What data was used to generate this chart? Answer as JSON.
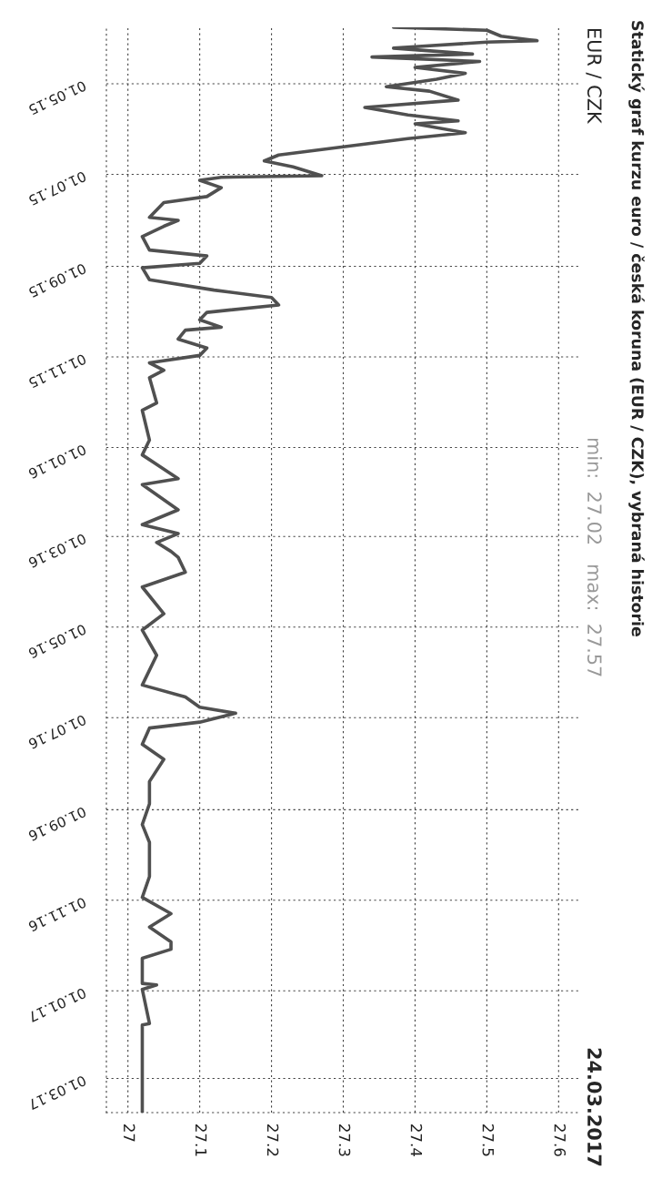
{
  "chart_data": {
    "type": "line",
    "title": "Statický graf kurzu euro / česká koruna (EUR / CZK), vybraná historie",
    "subtitle": "EUR / CZK",
    "annotations": [
      "min:  27.02   max:  27.57",
      "24.03.2017"
    ],
    "x": [
      "2015-03-24",
      "2015-03-26",
      "2015-03-30",
      "2015-04-02",
      "2015-04-03",
      "2015-04-06",
      "2015-04-07",
      "2015-04-11",
      "2015-04-13",
      "2015-04-16",
      "2015-04-20",
      "2015-04-24",
      "2015-04-28",
      "2015-05-03",
      "2015-05-06",
      "2015-05-12",
      "2015-05-17",
      "2015-05-22",
      "2015-05-26",
      "2015-05-28",
      "2015-06-03",
      "2015-06-07",
      "2015-06-10",
      "2015-06-18",
      "2015-06-22",
      "2015-06-26",
      "2015-07-02",
      "2015-07-03",
      "2015-07-05",
      "2015-07-10",
      "2015-07-16",
      "2015-07-20",
      "2015-07-30",
      "2015-08-01",
      "2015-08-05",
      "2015-08-12",
      "2015-08-21",
      "2015-08-25",
      "2015-08-30",
      "2015-09-02",
      "2015-09-10",
      "2015-09-17",
      "2015-09-22",
      "2015-09-27",
      "2015-10-02",
      "2015-10-07",
      "2015-10-12",
      "2015-10-14",
      "2015-10-20",
      "2015-10-26",
      "2015-10-31",
      "2015-11-05",
      "2015-11-10",
      "2015-11-15",
      "2015-12-02",
      "2015-12-07",
      "2015-12-27",
      "2016-01-06",
      "2016-01-22",
      "2016-01-26",
      "2016-02-12",
      "2016-02-22",
      "2016-02-28",
      "2016-03-05",
      "2016-03-11",
      "2016-03-15",
      "2016-03-25",
      "2016-04-04",
      "2016-04-22",
      "2016-05-03",
      "2016-05-20",
      "2016-06-09",
      "2016-06-17",
      "2016-06-24",
      "2016-06-28",
      "2016-07-04",
      "2016-07-08",
      "2016-07-19",
      "2016-07-29",
      "2016-08-13",
      "2016-08-28",
      "2016-09-11",
      "2016-09-23",
      "2016-10-16",
      "2016-10-30",
      "2016-11-10",
      "2016-11-19",
      "2016-11-29",
      "2016-12-04",
      "2016-12-10",
      "2016-12-27",
      "2016-12-28",
      "2016-12-31",
      "2017-01-23",
      "2017-01-24",
      "2017-03-24"
    ],
    "series": [
      {
        "color": "#505050",
        "values": [
          27.37,
          27.5,
          27.52,
          27.57,
          27.5,
          27.4,
          27.37,
          27.48,
          27.34,
          27.49,
          27.4,
          27.47,
          27.43,
          27.36,
          27.42,
          27.46,
          27.33,
          27.39,
          27.46,
          27.4,
          27.47,
          27.39,
          27.34,
          27.21,
          27.19,
          27.23,
          27.27,
          27.13,
          27.1,
          27.13,
          27.11,
          27.05,
          27.03,
          27.07,
          27.05,
          27.02,
          27.03,
          27.11,
          27.1,
          27.02,
          27.03,
          27.12,
          27.2,
          27.21,
          27.11,
          27.1,
          27.13,
          27.08,
          27.07,
          27.11,
          27.1,
          27.03,
          27.05,
          27.03,
          27.04,
          27.02,
          27.03,
          27.02,
          27.07,
          27.02,
          27.07,
          27.02,
          27.07,
          27.04,
          27.06,
          27.07,
          27.08,
          27.02,
          27.05,
          27.02,
          27.04,
          27.02,
          27.08,
          27.1,
          27.15,
          27.1,
          27.03,
          27.02,
          27.05,
          27.03,
          27.03,
          27.02,
          27.03,
          27.03,
          27.02,
          27.06,
          27.03,
          27.06,
          27.06,
          27.02,
          27.02,
          27.04,
          27.02,
          27.03,
          27.02,
          27.02
        ]
      }
    ],
    "orientation": "horizontal",
    "ylim": [
      "2017-03-24",
      "2015-03-24"
    ],
    "yticks": [
      {
        "value": "2015-05-01",
        "label": "01.05.15"
      },
      {
        "value": "2015-07-01",
        "label": "01.07.15"
      },
      {
        "value": "2015-09-01",
        "label": "01.09.15"
      },
      {
        "value": "2015-11-01",
        "label": "01.11.15"
      },
      {
        "value": "2016-01-01",
        "label": "01.01.16"
      },
      {
        "value": "2016-03-01",
        "label": "01.03.16"
      },
      {
        "value": "2016-05-01",
        "label": "01.05.16"
      },
      {
        "value": "2016-07-01",
        "label": "01.07.16"
      },
      {
        "value": "2016-09-01",
        "label": "01.09.16"
      },
      {
        "value": "2016-11-01",
        "label": "01.11.16"
      },
      {
        "value": "2017-01-01",
        "label": "01.01.17"
      },
      {
        "value": "2017-03-01",
        "label": "01.03.17"
      }
    ],
    "xlim": [
      26.97,
      27.63
    ],
    "xticks": [
      27,
      27.1,
      27.2,
      27.3,
      27.4,
      27.5,
      27.6
    ],
    "grid": true,
    "marker": "none",
    "line_style": "solid"
  }
}
